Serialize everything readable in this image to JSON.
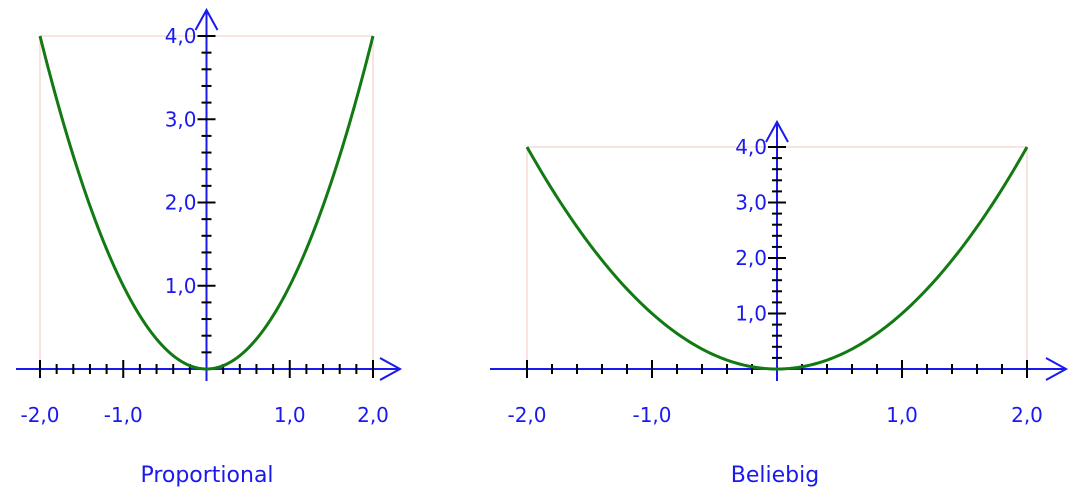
{
  "chart_data": [
    {
      "type": "line",
      "title": "Proportional",
      "function": "y = x^2",
      "x": [
        -2.0,
        -1.75,
        -1.5,
        -1.25,
        -1.0,
        -0.75,
        -0.5,
        -0.25,
        0.0,
        0.25,
        0.5,
        0.75,
        1.0,
        1.25,
        1.5,
        1.75,
        2.0
      ],
      "y": [
        4.0,
        3.0625,
        2.25,
        1.5625,
        1.0,
        0.5625,
        0.25,
        0.0625,
        0.0,
        0.0625,
        0.25,
        0.5625,
        1.0,
        1.5625,
        2.25,
        3.0625,
        4.0
      ],
      "xlim": [
        -2.0,
        2.0
      ],
      "ylim": [
        0.0,
        4.0
      ],
      "x_tick_labels": [
        {
          "value": -2.0,
          "label": "-2,0"
        },
        {
          "value": -1.0,
          "label": "-1,0"
        },
        {
          "value": 1.0,
          "label": "1,0"
        },
        {
          "value": 2.0,
          "label": "2,0"
        }
      ],
      "y_tick_labels": [
        {
          "value": 1.0,
          "label": "1,0"
        },
        {
          "value": 2.0,
          "label": "2,0"
        },
        {
          "value": 3.0,
          "label": "3,0"
        },
        {
          "value": 4.0,
          "label": "4,0"
        }
      ],
      "minor_tick_step": 0.2,
      "colors": {
        "curve": "#127a12",
        "axes": "#1a1aee",
        "frame": "#f4c8c0",
        "ticks": "#000000"
      }
    },
    {
      "type": "line",
      "title": "Beliebig",
      "function": "y = x^2",
      "x": [
        -2.0,
        -1.75,
        -1.5,
        -1.25,
        -1.0,
        -0.75,
        -0.5,
        -0.25,
        0.0,
        0.25,
        0.5,
        0.75,
        1.0,
        1.25,
        1.5,
        1.75,
        2.0
      ],
      "y": [
        4.0,
        3.0625,
        2.25,
        1.5625,
        1.0,
        0.5625,
        0.25,
        0.0625,
        0.0,
        0.0625,
        0.25,
        0.5625,
        1.0,
        1.5625,
        2.25,
        3.0625,
        4.0
      ],
      "xlim": [
        -2.0,
        2.0
      ],
      "ylim": [
        0.0,
        4.0
      ],
      "x_tick_labels": [
        {
          "value": -2.0,
          "label": "-2,0"
        },
        {
          "value": -1.0,
          "label": "-1,0"
        },
        {
          "value": 1.0,
          "label": "1,0"
        },
        {
          "value": 2.0,
          "label": "2,0"
        }
      ],
      "y_tick_labels": [
        {
          "value": 1.0,
          "label": "1,0"
        },
        {
          "value": 2.0,
          "label": "2,0"
        },
        {
          "value": 3.0,
          "label": "3,0"
        },
        {
          "value": 4.0,
          "label": "4,0"
        }
      ],
      "minor_tick_step": 0.2,
      "colors": {
        "curve": "#127a12",
        "axes": "#1a1aee",
        "frame": "#f4c8c0",
        "ticks": "#000000"
      }
    }
  ]
}
